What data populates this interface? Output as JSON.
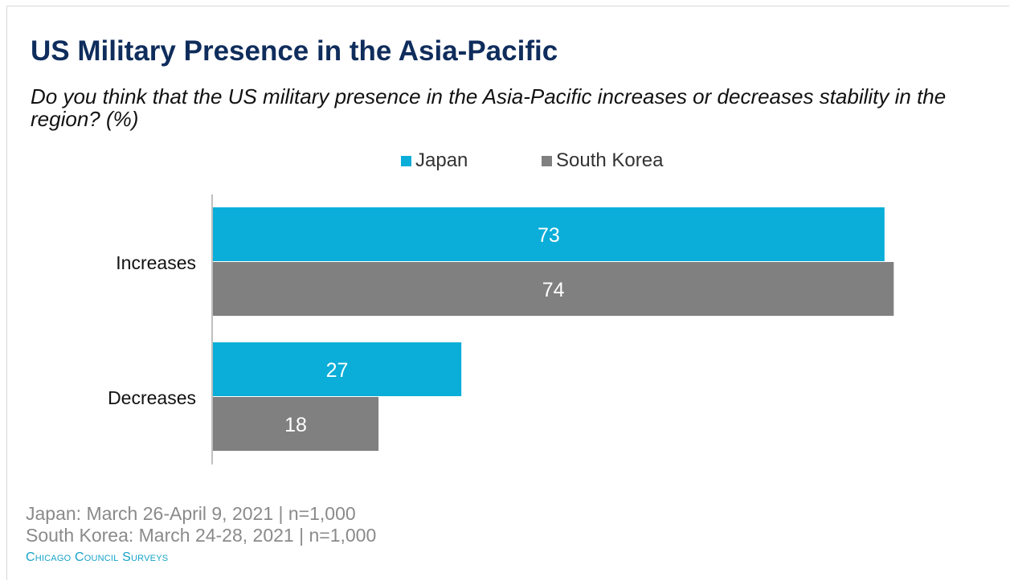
{
  "title": "US Military Presence in the Asia-Pacific",
  "subtitle": "Do you think that the US military presence in the Asia-Pacific increases or decreases stability in the region? (%)",
  "colors": {
    "japan": "#0aaed8",
    "south_korea": "#808080",
    "title": "#0f2d5c"
  },
  "legend": [
    {
      "label": "Japan",
      "color": "#0aaed8"
    },
    {
      "label": "South Korea",
      "color": "#808080"
    }
  ],
  "chart_data": {
    "type": "bar",
    "orientation": "horizontal",
    "categories": [
      "Increases",
      "Decreases"
    ],
    "series": [
      {
        "name": "Japan",
        "values": [
          73,
          27
        ]
      },
      {
        "name": "South Korea",
        "values": [
          74,
          18
        ]
      }
    ],
    "xlim": [
      0,
      100
    ],
    "grid": false,
    "legend_position": "top"
  },
  "footer": {
    "line1": "Japan: March 26-April 9, 2021 | n=1,000",
    "line2": "South Korea: March 24-28, 2021 | n=1,000",
    "brand": "Chicago Council Surveys"
  }
}
